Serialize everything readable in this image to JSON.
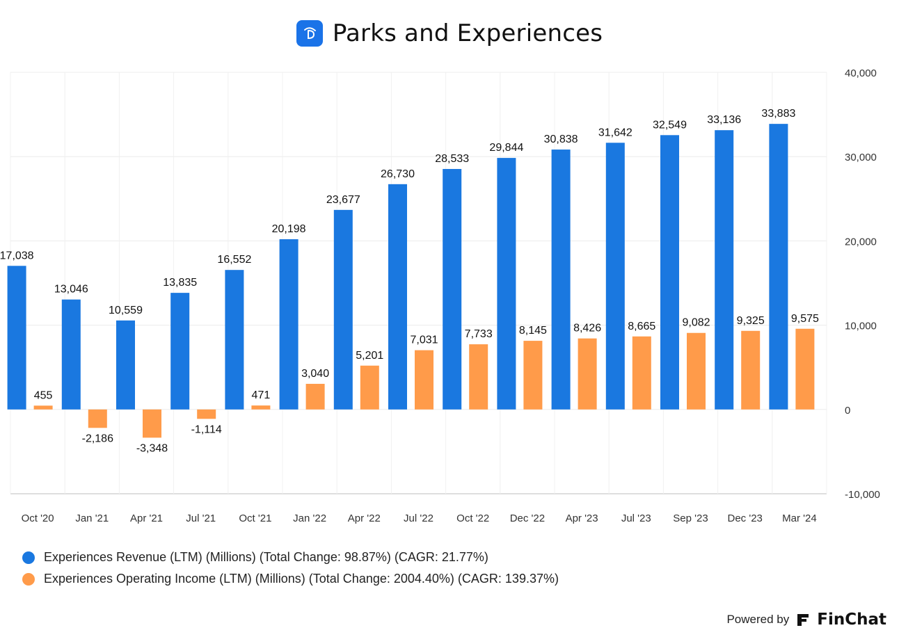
{
  "header": {
    "title": "Parks and Experiences"
  },
  "chart_data": {
    "type": "bar",
    "title": "Parks and Experiences",
    "categories": [
      "Oct '20",
      "Jan '21",
      "Apr '21",
      "Jul '21",
      "Oct '21",
      "Jan '22",
      "Apr '22",
      "Jul '22",
      "Oct '22",
      "Dec '22",
      "Apr '23",
      "Jul '23",
      "Sep '23",
      "Dec '23",
      "Mar '24"
    ],
    "series": [
      {
        "name": "Experiences Revenue (LTM) (Millions) (Total Change: 98.87%) (CAGR: 21.77%)",
        "color": "#1a78e0",
        "values": [
          17038,
          13046,
          10559,
          13835,
          16552,
          20198,
          23677,
          26730,
          28533,
          29844,
          30838,
          31642,
          32549,
          33136,
          33883
        ],
        "labels": [
          "17,038",
          "13,046",
          "10,559",
          "13,835",
          "16,552",
          "20,198",
          "23,677",
          "26,730",
          "28,533",
          "29,844",
          "30,838",
          "31,642",
          "32,549",
          "33,136",
          "33,883"
        ]
      },
      {
        "name": "Experiences Operating Income (LTM) (Millions) (Total Change: 2004.40%) (CAGR: 139.37%)",
        "color": "#ff9b4a",
        "values": [
          455,
          -2186,
          -3348,
          -1114,
          471,
          3040,
          5201,
          7031,
          7733,
          8145,
          8426,
          8665,
          9082,
          9325,
          9575
        ],
        "labels": [
          "455",
          "-2,186",
          "-3,348",
          "-1,114",
          "471",
          "3,040",
          "5,201",
          "7,031",
          "7,733",
          "8,145",
          "8,426",
          "8,665",
          "9,082",
          "9,325",
          "9,575"
        ]
      }
    ],
    "ylim": [
      -10000,
      40000
    ],
    "yticks": [
      -10000,
      0,
      10000,
      20000,
      30000,
      40000
    ],
    "ytick_labels": [
      "-10,000",
      "0",
      "10,000",
      "20,000",
      "30,000",
      "40,000"
    ],
    "axis_side": "right",
    "grid": true,
    "legend_position": "bottom-left"
  },
  "footer": {
    "powered_by": "Powered by",
    "brand": "FinChat"
  }
}
